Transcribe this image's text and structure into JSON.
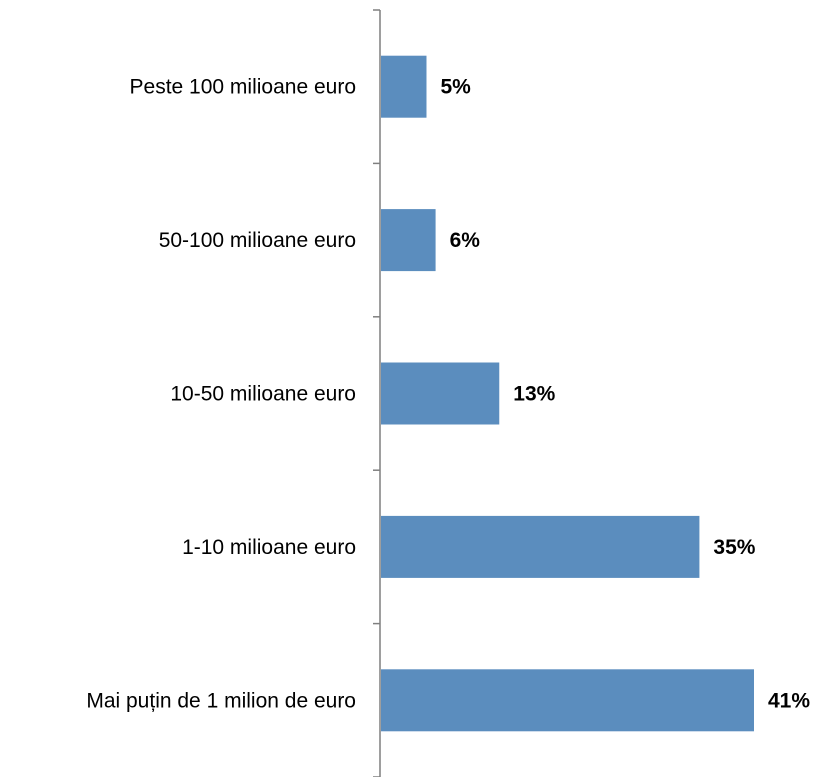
{
  "chart_data": {
    "type": "bar",
    "orientation": "horizontal",
    "categories": [
      "Peste 100 milioane euro",
      "50-100 milioane euro",
      "10-50 milioane euro",
      "1-10 milioane euro",
      "Mai puțin de 1 milion de euro"
    ],
    "values": [
      5,
      6,
      13,
      35,
      41
    ],
    "value_labels": [
      "5%",
      "6%",
      "13%",
      "35%",
      "41%"
    ],
    "unit": "%",
    "xlim": [
      0,
      41
    ],
    "bar_color": "#5B8DBE",
    "axis_color": "#7F7F7F",
    "grid": false,
    "legend": "none"
  }
}
